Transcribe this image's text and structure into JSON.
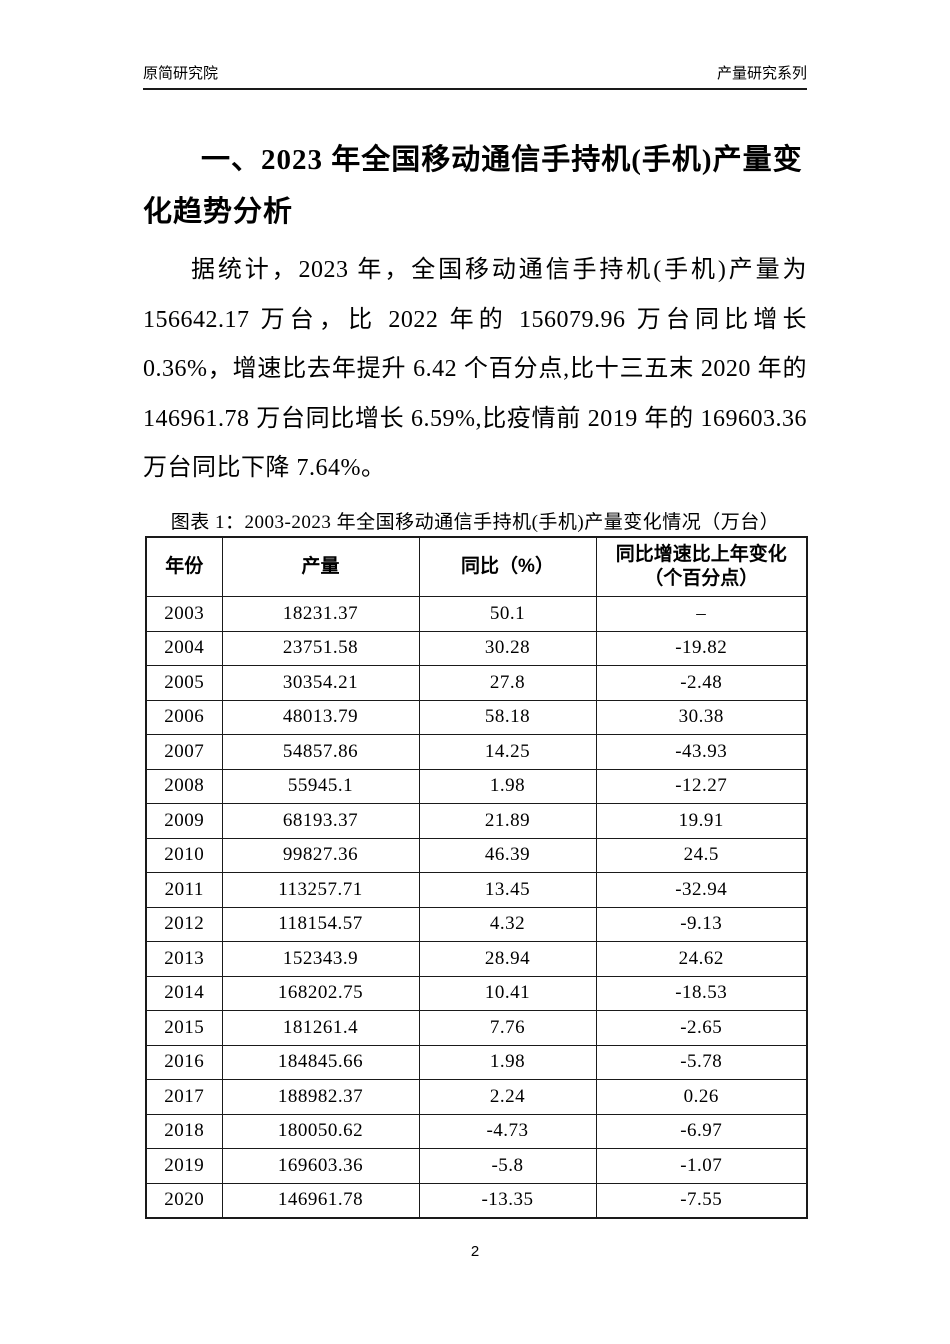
{
  "page": {
    "header": {
      "left": "原简研究院",
      "right": "产量研究系列"
    },
    "footer": {
      "page_number": "2"
    }
  },
  "article": {
    "title": "一、2023 年全国移动通信手持机(手机)产量变化趋势分析",
    "paragraph": "据统计，2023 年，全国移动通信手持机(手机)产量为 156642.17 万台，比 2022 年的 156079.96 万台同比增长 0.36%，增速比去年提升 6.42 个百分点,比十三五末 2020 年的 146961.78 万台同比增长 6.59%,比疫情前 2019 年的 169603.36 万台同比下降 7.64%。"
  },
  "table": {
    "caption": "图表 1：2003-2023 年全国移动通信手持机(手机)产量变化情况（万台）",
    "columns": [
      "年份",
      "产量",
      "同比（%）",
      "同比增速比上年变化\n（个百分点）"
    ],
    "rows": [
      [
        "2003",
        "18231.37",
        "50.1",
        "–"
      ],
      [
        "2004",
        "23751.58",
        "30.28",
        "-19.82"
      ],
      [
        "2005",
        "30354.21",
        "27.8",
        "-2.48"
      ],
      [
        "2006",
        "48013.79",
        "58.18",
        "30.38"
      ],
      [
        "2007",
        "54857.86",
        "14.25",
        "-43.93"
      ],
      [
        "2008",
        "55945.1",
        "1.98",
        "-12.27"
      ],
      [
        "2009",
        "68193.37",
        "21.89",
        "19.91"
      ],
      [
        "2010",
        "99827.36",
        "46.39",
        "24.5"
      ],
      [
        "2011",
        "113257.71",
        "13.45",
        "-32.94"
      ],
      [
        "2012",
        "118154.57",
        "4.32",
        "-9.13"
      ],
      [
        "2013",
        "152343.9",
        "28.94",
        "24.62"
      ],
      [
        "2014",
        "168202.75",
        "10.41",
        "-18.53"
      ],
      [
        "2015",
        "181261.4",
        "7.76",
        "-2.65"
      ],
      [
        "2016",
        "184845.66",
        "1.98",
        "-5.78"
      ],
      [
        "2017",
        "188982.37",
        "2.24",
        "0.26"
      ],
      [
        "2018",
        "180050.62",
        "-4.73",
        "-6.97"
      ],
      [
        "2019",
        "169603.36",
        "-5.8",
        "-1.07"
      ],
      [
        "2020",
        "146961.78",
        "-13.35",
        "-7.55"
      ]
    ]
  }
}
